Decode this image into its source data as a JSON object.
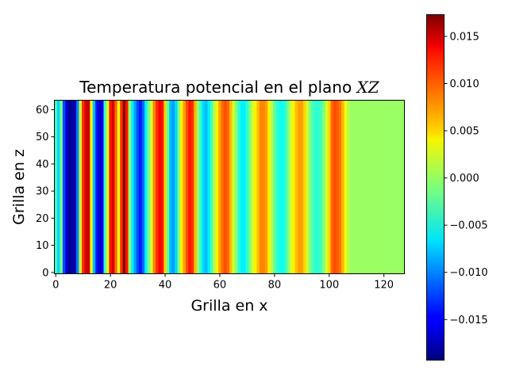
{
  "chart_data": {
    "type": "heatmap",
    "title_text": "Temperatura potencial en el plano ",
    "title_math": "XZ",
    "xlabel": "Grilla en x",
    "ylabel": "Grilla en z",
    "xlim": [
      -0.5,
      127.5
    ],
    "ylim": [
      -0.5,
      63.5
    ],
    "xticks": [
      0,
      20,
      40,
      60,
      80,
      100,
      120
    ],
    "yticks": [
      0,
      10,
      20,
      30,
      40,
      50,
      60
    ],
    "xtick_labels": [
      "0",
      "20",
      "40",
      "60",
      "80",
      "100",
      "120"
    ],
    "ytick_labels": [
      "0",
      "10",
      "20",
      "30",
      "40",
      "50",
      "60"
    ],
    "colormap": "jet",
    "colorbar": {
      "vmin": -0.0193,
      "vmax": 0.0173,
      "ticks": [
        0.015,
        0.01,
        0.005,
        0.0,
        -0.005,
        -0.01,
        -0.015
      ],
      "tick_labels": [
        "0.015",
        "0.010",
        "0.005",
        "0.000",
        "−0.005",
        "−0.010",
        "−0.015"
      ]
    },
    "note_rows": "every row z = 0..63 has identical values; columns x = 0..127",
    "column_values": [
      -0.003,
      -0.007,
      -0.0015,
      -0.012,
      -0.016,
      -0.019,
      -0.018,
      -0.0175,
      -0.01,
      0.002,
      0.011,
      0.014,
      0.015,
      0.004,
      -0.008,
      -0.014,
      -0.017,
      -0.015,
      -0.003,
      0.002,
      0.012,
      0.014,
      0.009,
      0.003,
      0.011,
      0.017,
      0.012,
      0.0,
      -0.006,
      -0.009,
      -0.012,
      -0.014,
      -0.011,
      -0.006,
      -0.001,
      0.002,
      0.008,
      0.011,
      0.013,
      0.012,
      0.005,
      -0.002,
      -0.008,
      -0.009,
      -0.007,
      -0.001,
      0.004,
      0.007,
      0.01,
      0.012,
      0.011,
      0.006,
      0.0,
      -0.004,
      -0.007,
      -0.008,
      -0.006,
      -0.003,
      0.001,
      0.004,
      0.007,
      0.009,
      0.01,
      0.009,
      0.006,
      0.002,
      -0.001,
      -0.004,
      -0.006,
      -0.006,
      -0.004,
      -0.001,
      0.002,
      0.004,
      0.006,
      0.008,
      0.008,
      0.007,
      0.004,
      0.001,
      -0.002,
      -0.004,
      -0.005,
      -0.005,
      -0.004,
      -0.001,
      0.002,
      0.004,
      0.006,
      0.007,
      0.007,
      0.005,
      0.002,
      -0.001,
      -0.003,
      -0.004,
      -0.004,
      -0.003,
      -0.001,
      0.002,
      0.005,
      0.009,
      0.01,
      0.0095,
      0.0085,
      0.006,
      0.003,
      0.001,
      0.0,
      0.0,
      0.0,
      0.0,
      0.0,
      0.0,
      0.0,
      0.0,
      0.0,
      0.0,
      0.0,
      0.0,
      0.0,
      0.0,
      0.0,
      0.0,
      0.0,
      0.0,
      0.0,
      0.0
    ]
  }
}
